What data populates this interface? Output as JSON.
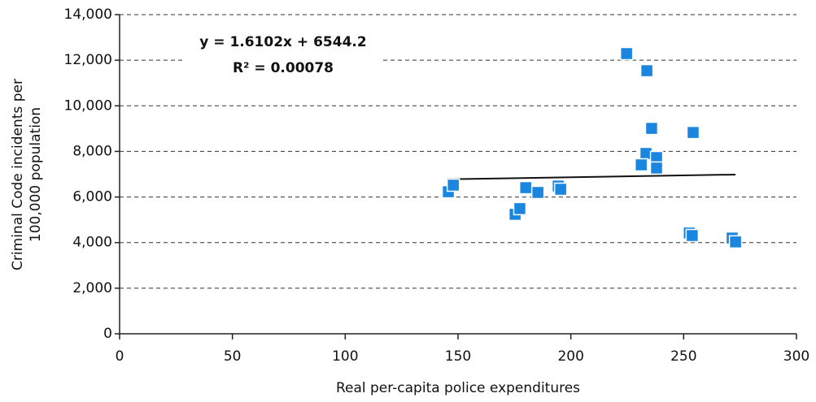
{
  "chart_data": {
    "type": "scatter",
    "x_label": "Real per-capita police expenditures",
    "y_label": [
      "Criminal Code incidents per",
      "100,000 population"
    ],
    "equation": "y = 1.6102x + 6544.2",
    "r_squared": "R² = 0.00078",
    "color": "#1a86e0",
    "grid": true,
    "xlim": [
      0,
      300
    ],
    "ylim": [
      0,
      14000
    ],
    "xticks": [
      0,
      50,
      100,
      150,
      200,
      250,
      300
    ],
    "yticks": [
      0,
      {
        "value": 2000,
        "label": "2,000"
      },
      {
        "value": 4000,
        "label": "4,000"
      },
      {
        "value": 6000,
        "label": "6,000"
      },
      {
        "value": 8000,
        "label": "8,000"
      },
      {
        "value": 10000,
        "label": "10,000"
      },
      {
        "value": 12000,
        "label": "12,000"
      },
      {
        "value": 14000,
        "label": "14,000"
      }
    ],
    "x": [
      145.7,
      147.9,
      175.3,
      177.4,
      180,
      185.4,
      194.4,
      195.5,
      224.7,
      233.7,
      235.8,
      254.2,
      233.3,
      238,
      231.2,
      238,
      252.5,
      253.8,
      271.5,
      273
    ],
    "values": [
      6230,
      6520,
      5240,
      5490,
      6410,
      6200,
      6480,
      6340,
      12290,
      11540,
      9010,
      8830,
      7910,
      7730,
      7410,
      7270,
      4420,
      4310,
      4200,
      4030
    ],
    "trendline": {
      "x": [
        145,
        273
      ],
      "y": [
        6778,
        6984
      ]
    }
  }
}
